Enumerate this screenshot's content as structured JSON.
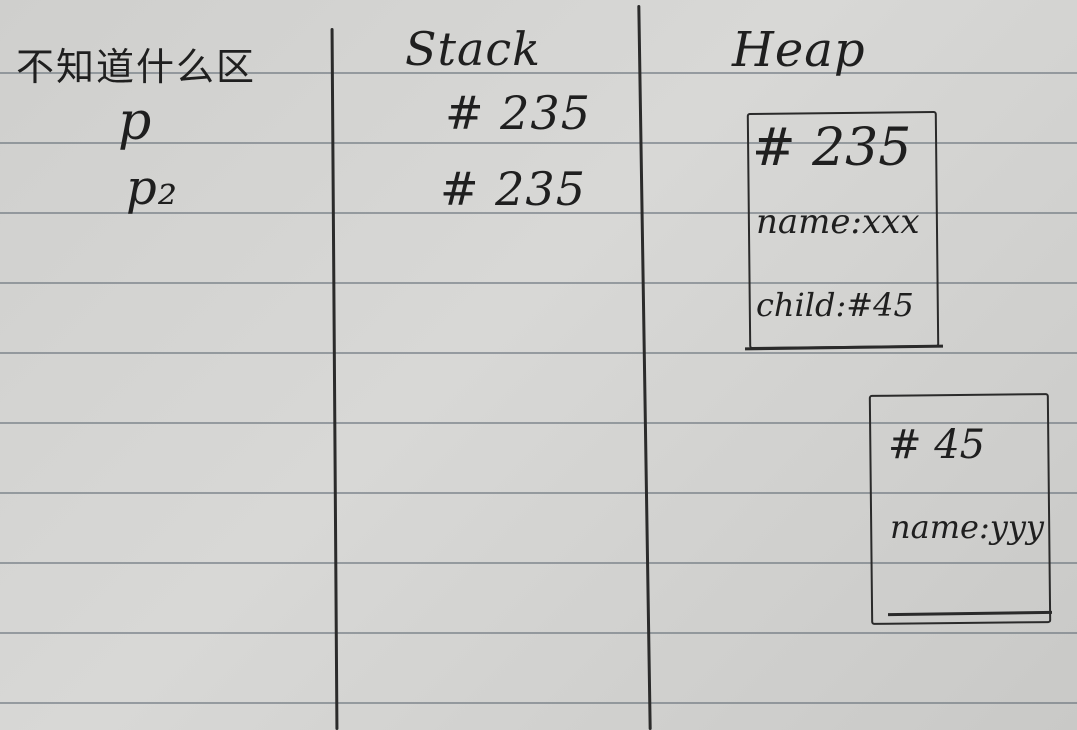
{
  "columns": {
    "unknown": {
      "title": "不知道什么区",
      "items": [
        "p",
        "p₂"
      ]
    },
    "stack": {
      "title": "Stack",
      "items": [
        "# 235",
        "# 235"
      ]
    },
    "heap": {
      "title": "Heap"
    }
  },
  "heap_objects": [
    {
      "address": "# 235",
      "fields": [
        "name:xxx",
        "child:#45"
      ]
    },
    {
      "address": "# 45",
      "fields": [
        "name:yyy"
      ]
    }
  ]
}
